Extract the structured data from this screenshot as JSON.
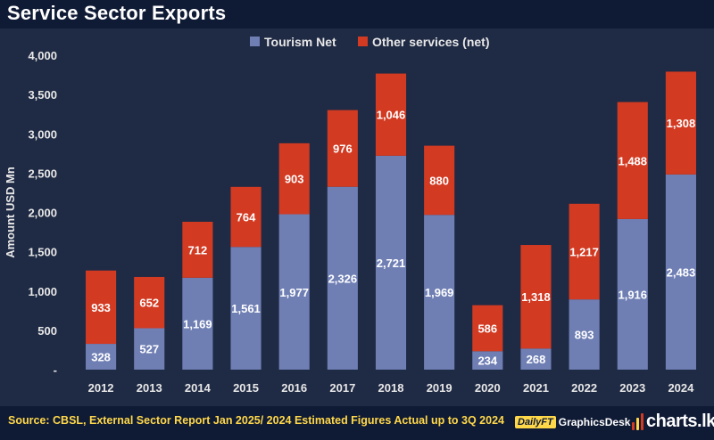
{
  "header": {
    "title": "Service Sector Exports"
  },
  "footer": {
    "source": "Source: CBSL, External Sector Report Jan 2025/ 2024 Estimated Figures Actual up to 3Q 2024",
    "brand_logo_text": "DailyFT",
    "brand_name": "GraphicsDesk",
    "site_name": "charts.lk"
  },
  "colors": {
    "tourism": "#6f7fb4",
    "other": "#d23a22",
    "background": "#1f2a44",
    "header": "#0f1a35",
    "text": "#e8e8e8",
    "accent": "#ffd84a"
  },
  "chart_data": {
    "type": "bar",
    "stacked": true,
    "title": "Service Sector Exports",
    "xlabel": "",
    "ylabel": "Amount USD Mn",
    "ylim": [
      0,
      4000
    ],
    "yticks": [
      0,
      500,
      1000,
      1500,
      2000,
      2500,
      3000,
      3500,
      4000
    ],
    "ytick_labels": [
      "-",
      "500",
      "1,000",
      "1,500",
      "2,000",
      "2,500",
      "3,000",
      "3,500",
      "4,000"
    ],
    "legend_position": "top-center",
    "categories": [
      "2012",
      "2013",
      "2014",
      "2015",
      "2016",
      "2017",
      "2018",
      "2019",
      "2020",
      "2021",
      "2022",
      "2023",
      "2024"
    ],
    "series": [
      {
        "name": "Tourism Net",
        "values": [
          328,
          527,
          1169,
          1561,
          1977,
          2326,
          2721,
          1969,
          234,
          268,
          893,
          1916,
          2483
        ]
      },
      {
        "name": "Other services (net)",
        "values": [
          933,
          652,
          712,
          764,
          903,
          976,
          1046,
          880,
          586,
          1318,
          1217,
          1488,
          1308
        ]
      }
    ]
  }
}
